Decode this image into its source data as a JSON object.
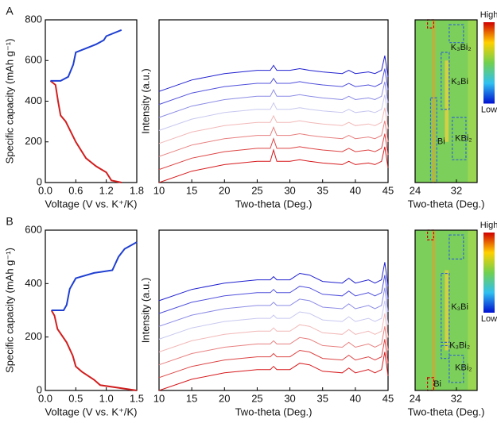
{
  "chart_data": [
    {
      "type": "line",
      "label": "A",
      "ylabel": "Specific capacity (mAh g⁻¹)",
      "xlabel": "Voltage (V vs. K⁺/K)",
      "xlim": [
        0,
        1.8
      ],
      "xticks": [
        {
          "value": 0,
          "label": "0.0"
        },
        0.6,
        1.2,
        1.8
      ],
      "ylim": [
        0,
        800
      ],
      "yticks": [
        0,
        200,
        400,
        600,
        800
      ],
      "series": [
        {
          "color": "#d11f1f",
          "x": [
            1.5,
            1.3,
            1.2,
            1.0,
            0.8,
            0.6,
            0.4,
            0.3,
            0.25,
            0.2,
            0.1
          ],
          "values": [
            0,
            10,
            50,
            80,
            120,
            200,
            300,
            330,
            400,
            480,
            500
          ]
        },
        {
          "color": "#1f3fd1",
          "x": [
            0.1,
            0.3,
            0.45,
            0.55,
            0.6,
            0.8,
            1.0,
            1.15,
            1.2,
            1.5
          ],
          "values": [
            500,
            500,
            520,
            580,
            640,
            660,
            680,
            700,
            720,
            750
          ]
        }
      ]
    },
    {
      "type": "line",
      "ylabel": "Intensity (a.u.)",
      "xlabel": "Two-theta (Deg.)",
      "xlim": [
        10,
        45
      ],
      "xticks": [
        10,
        15,
        20,
        25,
        30,
        35,
        40,
        45
      ],
      "ylim": [
        0,
        100
      ],
      "x": [
        10,
        15,
        20,
        25,
        27,
        27.5,
        28,
        30,
        31.5,
        33,
        35,
        38,
        39,
        40,
        42,
        43,
        44,
        44.5,
        45
      ],
      "series": [
        {
          "color": "#d7191c",
          "values": [
            0,
            7,
            11,
            13,
            13,
            20,
            13,
            13,
            14,
            13,
            12,
            11,
            13,
            11,
            12,
            11,
            13,
            22,
            9
          ]
        },
        {
          "color": "#dd4444",
          "values": [
            8,
            15,
            19,
            21,
            21,
            27,
            21,
            21,
            22,
            21,
            20,
            19,
            21,
            19,
            20,
            19,
            21,
            30,
            17
          ]
        },
        {
          "color": "#e88080",
          "values": [
            16,
            23,
            27,
            29,
            29,
            34,
            29,
            29,
            30,
            29,
            28,
            27,
            29,
            27,
            28,
            27,
            29,
            38,
            25
          ]
        },
        {
          "color": "#f2b8b8",
          "values": [
            24,
            31,
            35,
            37,
            37,
            41,
            37,
            37,
            38,
            37,
            36,
            35,
            37,
            35,
            36,
            35,
            37,
            46,
            33
          ]
        },
        {
          "color": "#c8c8f0",
          "values": [
            32,
            39,
            43,
            45,
            45,
            49,
            45,
            45,
            46,
            45,
            44,
            43,
            45,
            43,
            44,
            43,
            45,
            54,
            41
          ]
        },
        {
          "color": "#8c8ce6",
          "values": [
            40,
            47,
            51,
            53,
            53,
            57,
            53,
            53,
            54,
            53,
            52,
            51,
            53,
            51,
            52,
            51,
            53,
            62,
            49
          ]
        },
        {
          "color": "#5050dc",
          "values": [
            48,
            55,
            59,
            61,
            61,
            64,
            61,
            61,
            62,
            61,
            60,
            59,
            61,
            59,
            60,
            59,
            61,
            70,
            57
          ]
        },
        {
          "color": "#2020d0",
          "values": [
            56,
            63,
            67,
            69,
            69,
            72,
            69,
            69,
            70,
            69,
            68,
            67,
            69,
            67,
            68,
            67,
            69,
            78,
            65
          ]
        }
      ]
    },
    {
      "type": "heatmap",
      "xlabel": "Two-theta (Deg.)",
      "xlim": [
        24,
        36
      ],
      "xticks": [
        24,
        32
      ],
      "colorbar": [
        "High",
        "Low"
      ],
      "annotations": [
        "K₃Bi₂",
        "K₃Bi",
        "Bi",
        "KBi₂"
      ]
    },
    {
      "type": "line",
      "label": "B",
      "ylabel": "Specific capacity (mAh g⁻¹)",
      "xlabel": "Voltage (V vs. K⁺/K)",
      "xlim": [
        0,
        1.5
      ],
      "xticks": [
        {
          "value": 0,
          "label": "0.0"
        },
        0.5,
        {
          "value": 1,
          "label": "1.0"
        },
        1.5
      ],
      "ylim": [
        0,
        600
      ],
      "yticks": [
        0,
        200,
        400,
        600
      ],
      "series": [
        {
          "color": "#d11f1f",
          "x": [
            1.5,
            1.2,
            0.9,
            0.8,
            0.6,
            0.5,
            0.45,
            0.35,
            0.2,
            0.15,
            0.1
          ],
          "values": [
            0,
            10,
            20,
            40,
            70,
            90,
            130,
            180,
            230,
            280,
            300
          ]
        },
        {
          "color": "#1f3fd1",
          "x": [
            0.1,
            0.3,
            0.35,
            0.4,
            0.5,
            0.8,
            1.1,
            1.2,
            1.3,
            1.5
          ],
          "values": [
            300,
            300,
            320,
            380,
            420,
            440,
            450,
            500,
            530,
            555
          ]
        }
      ]
    },
    {
      "type": "line",
      "ylabel": "Intensity (a.u.)",
      "xlabel": "Two-theta (Deg.)",
      "xlim": [
        10,
        45
      ],
      "xticks": [
        10,
        15,
        20,
        25,
        30,
        35,
        40,
        45
      ],
      "ylim": [
        0,
        100
      ],
      "x": [
        10,
        15,
        20,
        25,
        27,
        27.5,
        28,
        30,
        31.5,
        33,
        35,
        38,
        39,
        40,
        42,
        43,
        44,
        44.5,
        45
      ],
      "series": [
        {
          "color": "#d7191c",
          "values": [
            0,
            7,
            11,
            13,
            13,
            15,
            13,
            13,
            17,
            16,
            12,
            11,
            14,
            11,
            13,
            11,
            13,
            24,
            9
          ]
        },
        {
          "color": "#dd4444",
          "values": [
            8,
            15,
            19,
            21,
            21,
            23,
            21,
            21,
            25,
            24,
            20,
            19,
            22,
            19,
            21,
            19,
            21,
            32,
            17
          ]
        },
        {
          "color": "#e88080",
          "values": [
            16,
            23,
            27,
            29,
            29,
            31,
            29,
            29,
            33,
            32,
            28,
            27,
            30,
            27,
            29,
            27,
            29,
            40,
            25
          ]
        },
        {
          "color": "#f2b8b8",
          "values": [
            24,
            31,
            35,
            37,
            37,
            39,
            37,
            37,
            41,
            40,
            36,
            35,
            38,
            35,
            37,
            35,
            37,
            48,
            33
          ]
        },
        {
          "color": "#c8c8f0",
          "values": [
            32,
            39,
            43,
            45,
            45,
            47,
            45,
            45,
            49,
            48,
            44,
            43,
            46,
            43,
            45,
            43,
            45,
            56,
            41
          ]
        },
        {
          "color": "#8c8ce6",
          "values": [
            40,
            47,
            51,
            53,
            53,
            55,
            53,
            53,
            57,
            56,
            52,
            51,
            54,
            51,
            53,
            51,
            53,
            64,
            49
          ]
        },
        {
          "color": "#5050dc",
          "values": [
            48,
            55,
            59,
            61,
            61,
            63,
            61,
            61,
            65,
            64,
            60,
            59,
            62,
            59,
            61,
            59,
            61,
            72,
            57
          ]
        },
        {
          "color": "#2020d0",
          "values": [
            56,
            63,
            67,
            69,
            69,
            71,
            69,
            69,
            73,
            72,
            68,
            67,
            70,
            67,
            69,
            67,
            69,
            80,
            65
          ]
        }
      ]
    },
    {
      "type": "heatmap",
      "xlabel": "Two-theta (Deg.)",
      "xlim": [
        24,
        36
      ],
      "xticks": [
        24,
        32
      ],
      "colorbar": [
        "High",
        "Low"
      ],
      "annotations": [
        "K₃Bi",
        "K₃Bi₂",
        "KBi₂",
        "Bi"
      ]
    }
  ]
}
